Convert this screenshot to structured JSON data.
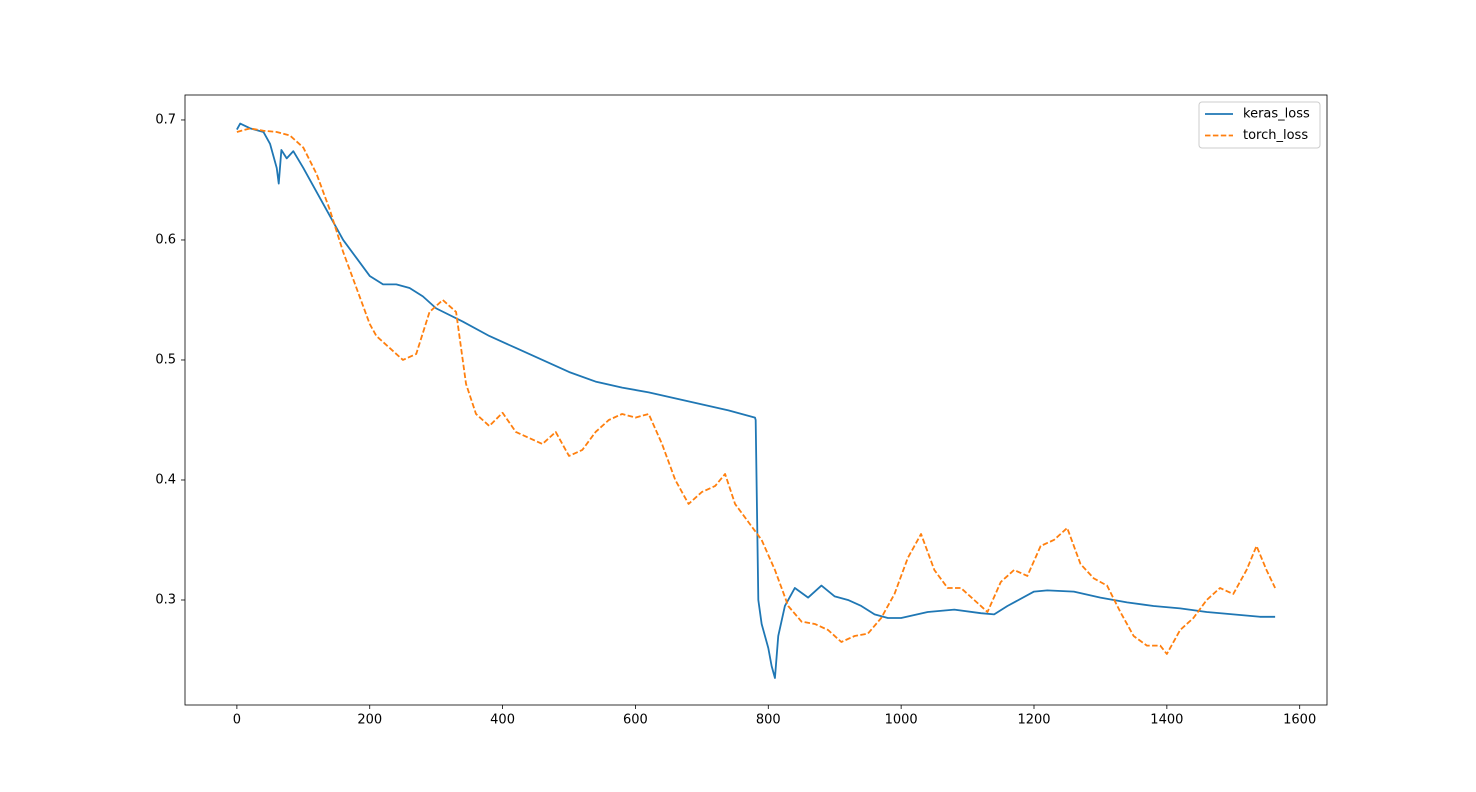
{
  "chart_data": {
    "type": "line",
    "xlim": [
      -78.1,
      1641.1
    ],
    "ylim": [
      0.2125,
      0.7208
    ],
    "xticks": [
      0,
      200,
      400,
      600,
      800,
      1000,
      1200,
      1400,
      1600
    ],
    "yticks": [
      0.3,
      0.4,
      0.5,
      0.6,
      0.7
    ],
    "legend": "upper right",
    "series": [
      {
        "name": "keras_loss",
        "color": "#1f77b4",
        "style": "solid",
        "x": [
          0,
          5,
          20,
          40,
          50,
          60,
          63,
          67,
          75,
          85,
          100,
          120,
          140,
          160,
          180,
          200,
          220,
          240,
          260,
          280,
          300,
          340,
          380,
          420,
          460,
          500,
          540,
          580,
          620,
          660,
          700,
          740,
          780,
          781,
          785,
          790,
          800,
          805,
          810,
          815,
          825,
          840,
          860,
          880,
          900,
          920,
          940,
          960,
          980,
          1000,
          1040,
          1080,
          1120,
          1140,
          1160,
          1200,
          1220,
          1260,
          1300,
          1340,
          1380,
          1420,
          1460,
          1500,
          1540,
          1563
        ],
        "values": [
          0.692,
          0.697,
          0.693,
          0.69,
          0.68,
          0.66,
          0.647,
          0.675,
          0.668,
          0.674,
          0.66,
          0.64,
          0.62,
          0.6,
          0.585,
          0.57,
          0.563,
          0.563,
          0.56,
          0.553,
          0.543,
          0.532,
          0.52,
          0.51,
          0.5,
          0.49,
          0.482,
          0.477,
          0.473,
          0.468,
          0.463,
          0.458,
          0.452,
          0.45,
          0.3,
          0.28,
          0.26,
          0.245,
          0.235,
          0.27,
          0.295,
          0.31,
          0.302,
          0.312,
          0.303,
          0.3,
          0.295,
          0.288,
          0.285,
          0.285,
          0.29,
          0.292,
          0.289,
          0.288,
          0.295,
          0.307,
          0.308,
          0.307,
          0.302,
          0.298,
          0.295,
          0.293,
          0.29,
          0.288,
          0.286,
          0.286
        ]
      },
      {
        "name": "torch_loss",
        "color": "#ff7f0e",
        "style": "dashed",
        "x": [
          0,
          20,
          40,
          60,
          80,
          100,
          120,
          140,
          160,
          180,
          200,
          210,
          230,
          250,
          270,
          290,
          310,
          330,
          345,
          360,
          380,
          400,
          420,
          440,
          460,
          480,
          500,
          520,
          540,
          560,
          580,
          600,
          620,
          640,
          660,
          680,
          700,
          720,
          735,
          750,
          770,
          790,
          810,
          830,
          850,
          870,
          890,
          910,
          930,
          950,
          970,
          990,
          1010,
          1030,
          1050,
          1070,
          1090,
          1110,
          1130,
          1150,
          1170,
          1190,
          1210,
          1230,
          1250,
          1270,
          1290,
          1310,
          1330,
          1350,
          1370,
          1390,
          1400,
          1420,
          1440,
          1460,
          1480,
          1500,
          1520,
          1535,
          1550,
          1563
        ],
        "values": [
          0.69,
          0.693,
          0.691,
          0.69,
          0.687,
          0.677,
          0.655,
          0.625,
          0.59,
          0.56,
          0.53,
          0.52,
          0.51,
          0.5,
          0.505,
          0.54,
          0.55,
          0.54,
          0.48,
          0.455,
          0.445,
          0.456,
          0.44,
          0.435,
          0.43,
          0.44,
          0.42,
          0.425,
          0.44,
          0.45,
          0.455,
          0.452,
          0.455,
          0.43,
          0.4,
          0.38,
          0.39,
          0.395,
          0.405,
          0.38,
          0.365,
          0.35,
          0.325,
          0.295,
          0.282,
          0.28,
          0.275,
          0.265,
          0.27,
          0.272,
          0.285,
          0.305,
          0.335,
          0.355,
          0.325,
          0.31,
          0.31,
          0.3,
          0.29,
          0.315,
          0.325,
          0.32,
          0.345,
          0.35,
          0.36,
          0.33,
          0.318,
          0.312,
          0.29,
          0.27,
          0.262,
          0.262,
          0.255,
          0.275,
          0.285,
          0.3,
          0.31,
          0.305,
          0.325,
          0.345,
          0.325,
          0.31
        ]
      }
    ]
  }
}
